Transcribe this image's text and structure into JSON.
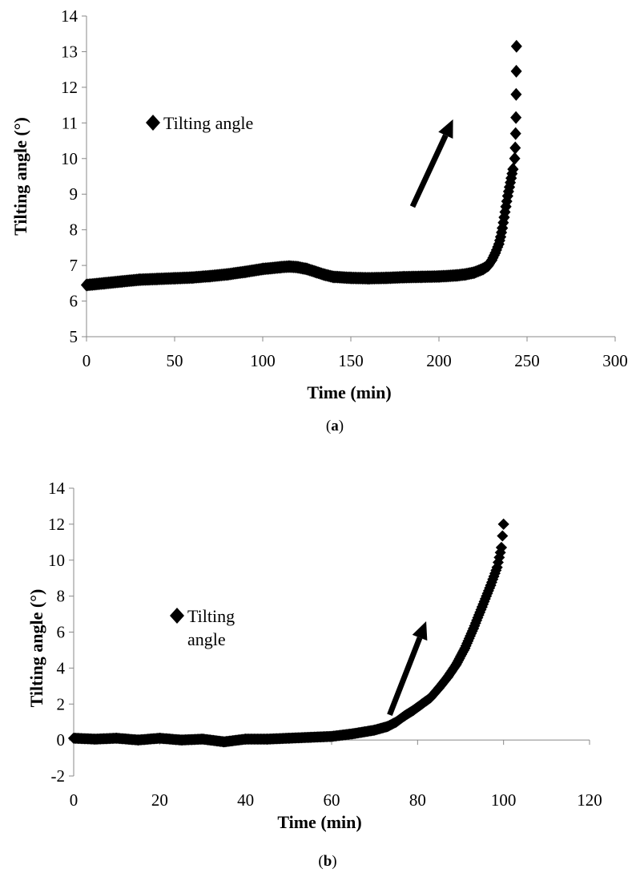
{
  "chart_data": [
    {
      "id": "a",
      "type": "scatter",
      "caption": "(a)",
      "caption_letter": "a",
      "xlabel": "Time (min)",
      "ylabel": "Tilting angle (°)",
      "xlim": [
        0,
        300
      ],
      "ylim": [
        5,
        14
      ],
      "xticks": [
        0,
        50,
        100,
        150,
        200,
        250,
        300
      ],
      "yticks": [
        5,
        6,
        7,
        8,
        9,
        10,
        11,
        12,
        13,
        14
      ],
      "grid": false,
      "legend": {
        "position": "upper-left",
        "entries": [
          "Tilting angle"
        ]
      },
      "annotation": {
        "type": "arrow",
        "from": [
          185,
          8.65
        ],
        "to": [
          208,
          11.1
        ]
      },
      "series": [
        {
          "name": "Tilting angle",
          "marker": "diamond",
          "points": [
            [
              0,
              6.45
            ],
            [
              10,
              6.5
            ],
            [
              20,
              6.55
            ],
            [
              30,
              6.6
            ],
            [
              40,
              6.62
            ],
            [
              50,
              6.64
            ],
            [
              60,
              6.66
            ],
            [
              70,
              6.7
            ],
            [
              80,
              6.75
            ],
            [
              90,
              6.82
            ],
            [
              100,
              6.9
            ],
            [
              110,
              6.95
            ],
            [
              115,
              6.97
            ],
            [
              120,
              6.95
            ],
            [
              125,
              6.9
            ],
            [
              130,
              6.82
            ],
            [
              135,
              6.74
            ],
            [
              140,
              6.68
            ],
            [
              150,
              6.65
            ],
            [
              160,
              6.64
            ],
            [
              170,
              6.65
            ],
            [
              180,
              6.67
            ],
            [
              190,
              6.68
            ],
            [
              200,
              6.69
            ],
            [
              210,
              6.72
            ],
            [
              215,
              6.75
            ],
            [
              220,
              6.8
            ],
            [
              225,
              6.9
            ],
            [
              228,
              7.0
            ],
            [
              230,
              7.15
            ],
            [
              232,
              7.35
            ],
            [
              234,
              7.6
            ],
            [
              235,
              7.8
            ],
            [
              236,
              8.05
            ],
            [
              237,
              8.35
            ],
            [
              238,
              8.65
            ],
            [
              239,
              8.95
            ],
            [
              240,
              9.2
            ],
            [
              241,
              9.45
            ],
            [
              242,
              9.7
            ],
            [
              243,
              10.0
            ],
            [
              243.3,
              10.3
            ],
            [
              243.5,
              10.7
            ],
            [
              243.7,
              11.15
            ],
            [
              243.8,
              11.8
            ],
            [
              243.9,
              12.45
            ],
            [
              244,
              13.15
            ]
          ]
        }
      ]
    },
    {
      "id": "b",
      "type": "scatter",
      "caption": "(b)",
      "caption_letter": "b",
      "xlabel": "Time (min)",
      "ylabel": "Tilting angle (°)",
      "xlim": [
        0,
        120
      ],
      "ylim": [
        -2,
        14
      ],
      "xticks": [
        0,
        20,
        40,
        60,
        80,
        100,
        120
      ],
      "yticks": [
        -2,
        0,
        2,
        4,
        6,
        8,
        10,
        12,
        14
      ],
      "grid": false,
      "legend": {
        "position": "middle-left",
        "entries": [
          "Tilting angle"
        ]
      },
      "annotation": {
        "type": "arrow",
        "from": [
          73.5,
          1.4
        ],
        "to": [
          82,
          6.6
        ]
      },
      "series": [
        {
          "name": "Tilting angle",
          "marker": "diamond",
          "points": [
            [
              0,
              0.1
            ],
            [
              5,
              0.05
            ],
            [
              10,
              0.1
            ],
            [
              15,
              0.0
            ],
            [
              20,
              0.1
            ],
            [
              25,
              0.0
            ],
            [
              30,
              0.05
            ],
            [
              35,
              -0.1
            ],
            [
              40,
              0.05
            ],
            [
              45,
              0.05
            ],
            [
              50,
              0.1
            ],
            [
              55,
              0.15
            ],
            [
              60,
              0.2
            ],
            [
              65,
              0.35
            ],
            [
              70,
              0.55
            ],
            [
              73,
              0.75
            ],
            [
              75,
              1.0
            ],
            [
              77,
              1.35
            ],
            [
              79,
              1.65
            ],
            [
              81,
              2.0
            ],
            [
              83,
              2.35
            ],
            [
              85,
              2.9
            ],
            [
              87,
              3.5
            ],
            [
              89,
              4.2
            ],
            [
              91,
              5.1
            ],
            [
              93,
              6.2
            ],
            [
              95,
              7.4
            ],
            [
              97,
              8.6
            ],
            [
              98.5,
              9.6
            ],
            [
              99.5,
              10.7
            ],
            [
              100,
              12.0
            ]
          ]
        }
      ]
    }
  ]
}
